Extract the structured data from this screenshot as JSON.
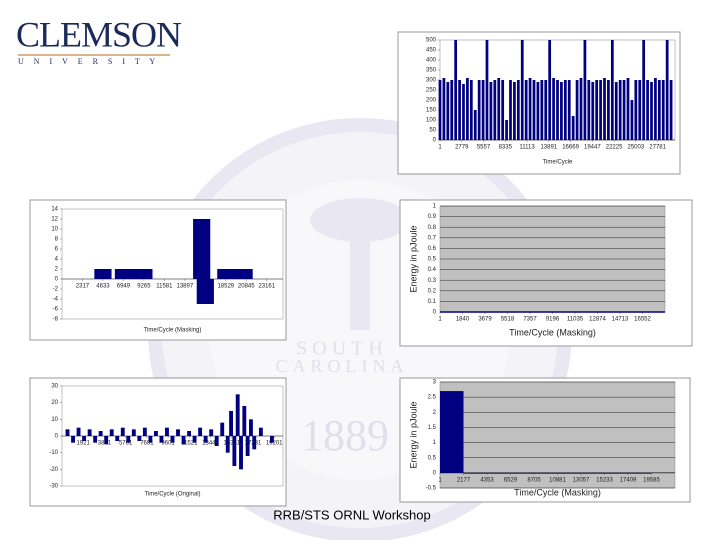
{
  "header": {
    "logo": "CLEMSON",
    "logo_sub": "U N I V E R S I T Y"
  },
  "watermark": {
    "state_1": "SOUTH",
    "state_2": "CAROLINA",
    "year": "1889"
  },
  "footer": "RRB/STS ORNL Workshop",
  "chart_data": [
    {
      "type": "stem",
      "x_label": "Time/Cycle",
      "color": "#000080",
      "grid": false,
      "x": [
        1,
        500,
        1000,
        1500,
        2000,
        2500,
        3000,
        3500,
        4000,
        4500,
        5000,
        5500,
        6000,
        6500,
        7000,
        7500,
        8000,
        8500,
        9000,
        9500,
        10000,
        10500,
        11000,
        11500,
        12000,
        12500,
        13000,
        13500,
        14000,
        14500,
        15000,
        15500,
        16000,
        16500,
        17000,
        17500,
        18000,
        18500,
        19000,
        19500,
        20000,
        20500,
        21000,
        21500,
        22000,
        22500,
        23000,
        23500,
        24000,
        24500,
        25000,
        25500,
        26000,
        26500,
        27000,
        27500,
        28000,
        28500,
        29000,
        29500
      ],
      "values": [
        300,
        310,
        290,
        300,
        500,
        300,
        280,
        310,
        300,
        150,
        300,
        300,
        500,
        290,
        300,
        310,
        300,
        100,
        300,
        290,
        300,
        500,
        300,
        310,
        300,
        290,
        300,
        300,
        500,
        310,
        300,
        290,
        300,
        300,
        120,
        300,
        310,
        500,
        300,
        290,
        300,
        300,
        310,
        300,
        500,
        290,
        300,
        300,
        310,
        200,
        300,
        300,
        500,
        300,
        290,
        310,
        300,
        300,
        500,
        300
      ],
      "xlim": [
        1,
        30000
      ],
      "xticks": [
        1,
        2779,
        5557,
        8335,
        11113,
        13891,
        16669,
        19447,
        22225,
        25003,
        27781
      ],
      "ylim": [
        0,
        500
      ],
      "yticks": [
        0,
        50,
        100,
        150,
        200,
        250,
        300,
        350,
        400,
        450,
        500
      ]
    },
    {
      "type": "stem",
      "x_label": "Time/Cycle (Masking)",
      "color": "#000080",
      "grid": false,
      "x": [
        4633,
        6949,
        8000,
        9265,
        15800,
        16213,
        18529,
        19500,
        20600
      ],
      "values": [
        2,
        2,
        2,
        2,
        12,
        -5,
        2,
        2,
        2
      ],
      "xlim": [
        1,
        25000
      ],
      "xticks": [
        2317,
        4633,
        6949,
        9265,
        11581,
        13897,
        16213,
        18529,
        20845,
        23161
      ],
      "ylim": [
        -8,
        14
      ],
      "yticks": [
        -8,
        -6,
        -4,
        -2,
        0,
        2,
        4,
        6,
        8,
        10,
        12,
        14
      ]
    },
    {
      "type": "line",
      "x_label": "Time/Cycle (Masking)",
      "y_label": "Energy in pJoule",
      "color": "#000080",
      "grid": true,
      "background": "#c0c0c0",
      "x": [
        1,
        18391
      ],
      "values": [
        0,
        0
      ],
      "xlim": [
        1,
        18391
      ],
      "xticks": [
        1,
        1840,
        3679,
        5518,
        7357,
        9196,
        11035,
        12874,
        14713,
        16552
      ],
      "ylim": [
        0,
        1
      ],
      "yticks": [
        0,
        0.1,
        0.2,
        0.3,
        0.4,
        0.5,
        0.6,
        0.7,
        0.8,
        0.9,
        1
      ]
    },
    {
      "type": "stem",
      "x_label": "Time/Cycle (Original)",
      "color": "#000080",
      "grid": false,
      "x": [
        500,
        1000,
        1500,
        2000,
        2500,
        3000,
        3500,
        4000,
        4500,
        5000,
        5500,
        6000,
        6500,
        7000,
        7500,
        8000,
        8500,
        9000,
        9500,
        10000,
        10500,
        11000,
        11500,
        12000,
        12500,
        13000,
        13500,
        14000,
        14500,
        15000,
        15300,
        15600,
        15900,
        16200,
        16500,
        16800,
        17100,
        17400,
        18000,
        19000
      ],
      "values": [
        4,
        -4,
        5,
        -3,
        4,
        -4,
        3,
        -5,
        4,
        -3,
        5,
        -4,
        4,
        -3,
        5,
        -4,
        3,
        -4,
        5,
        -4,
        4,
        -5,
        3,
        -4,
        5,
        -4,
        4,
        -6,
        8,
        -10,
        15,
        -18,
        25,
        -20,
        18,
        -12,
        10,
        -8,
        5,
        -4
      ],
      "xlim": [
        1,
        20000
      ],
      "xticks": [
        1921,
        3841,
        5761,
        7681,
        9601,
        11521,
        13441,
        15361,
        17281,
        19201
      ],
      "ylim": [
        -30,
        30
      ],
      "yticks": [
        -30,
        -20,
        -10,
        0,
        10,
        20,
        30
      ]
    },
    {
      "type": "histogram",
      "x_label": "Time/Cycle (Masking)",
      "y_label": "Energy in pJoule",
      "color": "#000080",
      "grid": true,
      "background": "#c0c0c0",
      "bins": [
        1,
        2177,
        19585
      ],
      "counts": [
        2.7,
        0
      ],
      "xlim": [
        1,
        21761
      ],
      "xticks": [
        1,
        2177,
        4353,
        6529,
        8705,
        10881,
        13057,
        15233,
        17409,
        19585
      ],
      "ylim": [
        -0.5,
        3
      ],
      "yticks": [
        -0.5,
        0,
        0.5,
        1,
        1.5,
        2,
        2.5,
        3
      ]
    }
  ]
}
